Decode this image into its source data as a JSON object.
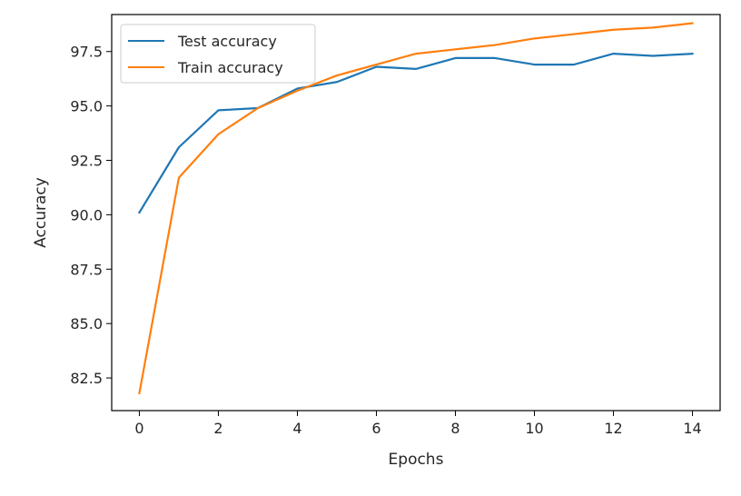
{
  "chart_data": {
    "type": "line",
    "title": "",
    "xlabel": "Epochs",
    "ylabel": "Accuracy",
    "xlim": [
      -0.7,
      14.7
    ],
    "ylim": [
      81.0,
      99.2
    ],
    "xticks": [
      0,
      2,
      4,
      6,
      8,
      10,
      12,
      14
    ],
    "xtick_labels": [
      "0",
      "2",
      "4",
      "6",
      "8",
      "10",
      "12",
      "14"
    ],
    "yticks": [
      82.5,
      85.0,
      87.5,
      90.0,
      92.5,
      95.0,
      97.5
    ],
    "ytick_labels": [
      "82.5",
      "85.0",
      "87.5",
      "90.0",
      "92.5",
      "95.0",
      "97.5"
    ],
    "grid": false,
    "legend_position": "top-left",
    "x": [
      0,
      1,
      2,
      3,
      4,
      5,
      6,
      7,
      8,
      9,
      10,
      11,
      12,
      13,
      14
    ],
    "series": [
      {
        "name": "Test accuracy",
        "color": "#1f77b4",
        "values": [
          90.1,
          93.1,
          94.8,
          94.9,
          95.8,
          96.1,
          96.8,
          96.7,
          97.2,
          97.2,
          96.9,
          96.9,
          97.4,
          97.3,
          97.4
        ]
      },
      {
        "name": "Train accuracy",
        "color": "#ff7f0e",
        "values": [
          81.8,
          91.7,
          93.7,
          94.9,
          95.7,
          96.4,
          96.9,
          97.4,
          97.6,
          97.8,
          98.1,
          98.3,
          98.5,
          98.6,
          98.8
        ]
      }
    ]
  }
}
